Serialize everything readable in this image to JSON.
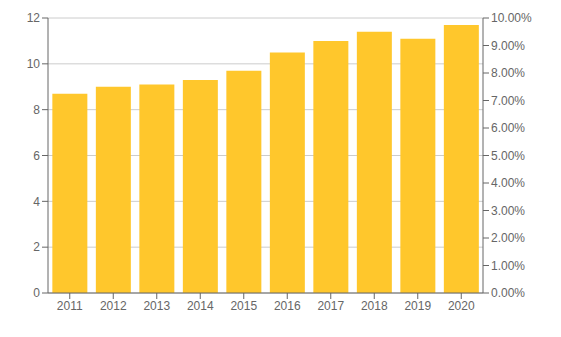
{
  "chart_data": {
    "type": "bar",
    "categories": [
      "2011",
      "2012",
      "2013",
      "2014",
      "2015",
      "2016",
      "2017",
      "2018",
      "2019",
      "2020"
    ],
    "values": [
      8.7,
      9.0,
      9.1,
      9.3,
      9.7,
      10.5,
      11.0,
      11.4,
      11.1,
      11.7
    ],
    "color": "#FFC72C",
    "ylim": [
      0,
      12
    ],
    "yticks": [
      0,
      2,
      4,
      6,
      8,
      10,
      12
    ],
    "y2lim": [
      0,
      0.1
    ],
    "y2ticks": [
      {
        "value": 0.0,
        "label": "0.00%"
      },
      {
        "value": 0.01,
        "label": "1.00%"
      },
      {
        "value": 0.02,
        "label": "2.00%"
      },
      {
        "value": 0.03,
        "label": "3.00%"
      },
      {
        "value": 0.04,
        "label": "4.00%"
      },
      {
        "value": 0.05,
        "label": "5.00%"
      },
      {
        "value": 0.06,
        "label": "6.00%"
      },
      {
        "value": 0.07,
        "label": "7.00%"
      },
      {
        "value": 0.08,
        "label": "8.00%"
      },
      {
        "value": 0.09,
        "label": "9.00%"
      },
      {
        "value": 0.1,
        "label": "10.00%"
      }
    ],
    "grid": true
  }
}
